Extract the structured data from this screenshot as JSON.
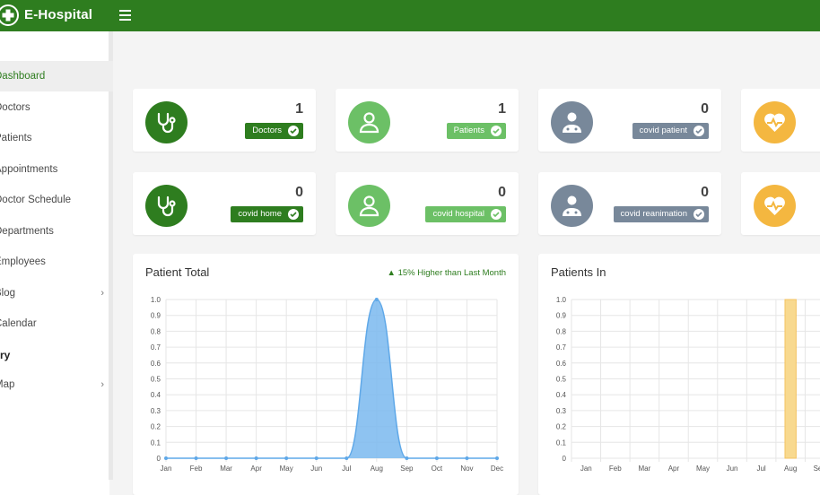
{
  "header": {
    "brand": "E-Hospital"
  },
  "sidebar": {
    "items": [
      {
        "label": "Dashboard",
        "active": true
      },
      {
        "label": "Doctors"
      },
      {
        "label": "Patients"
      },
      {
        "label": "Appointments"
      },
      {
        "label": "Doctor Schedule"
      },
      {
        "label": "Departments"
      },
      {
        "label": "Employees"
      },
      {
        "label": "Blog",
        "has_children": true
      },
      {
        "label": "Calendar"
      }
    ],
    "section_label": "ry",
    "map_item": {
      "label": "Map",
      "has_children": true
    }
  },
  "stats": [
    {
      "value": "1",
      "label": "Doctors",
      "icon": "stethoscope-icon",
      "color": "#2e7d1f"
    },
    {
      "value": "1",
      "label": "Patients",
      "icon": "user-icon",
      "color": "#6cc066"
    },
    {
      "value": "0",
      "label": "covid patient",
      "icon": "doctor-icon",
      "color": "#78889a"
    },
    {
      "value": "",
      "label": "",
      "icon": "heartbeat-icon",
      "color": "#f4b740"
    },
    {
      "value": "0",
      "label": "covid home",
      "icon": "stethoscope-icon",
      "color": "#2e7d1f"
    },
    {
      "value": "0",
      "label": "covid hospital",
      "icon": "user-icon",
      "color": "#6cc066"
    },
    {
      "value": "0",
      "label": "covid reanimation",
      "icon": "doctor-icon",
      "color": "#78889a"
    },
    {
      "value": "",
      "label": "",
      "icon": "heartbeat-icon",
      "color": "#f4b740"
    }
  ],
  "charts": {
    "patient_total": {
      "title": "Patient Total",
      "note": "15% Higher than Last Month"
    },
    "patients_in": {
      "title": "Patients In"
    }
  },
  "chart_data": [
    {
      "type": "area",
      "title": "Patient Total",
      "categories": [
        "Jan",
        "Feb",
        "Mar",
        "Apr",
        "May",
        "Jun",
        "Jul",
        "Aug",
        "Sep",
        "Oct",
        "Nov",
        "Dec"
      ],
      "values": [
        0,
        0,
        0,
        0,
        0,
        0,
        0,
        1,
        0,
        0,
        0,
        0
      ],
      "ylim": [
        0,
        1.0
      ],
      "yticks": [
        "0",
        "0.1",
        "0.2",
        "0.3",
        "0.4",
        "0.5",
        "0.6",
        "0.7",
        "0.8",
        "0.9",
        "1.0"
      ],
      "color": "#7ab8ef"
    },
    {
      "type": "bar",
      "title": "Patients In",
      "categories": [
        "Jan",
        "Feb",
        "Mar",
        "Apr",
        "May",
        "Jun",
        "Jul",
        "Aug",
        "Sep"
      ],
      "values": [
        0,
        0,
        0,
        0,
        0,
        0,
        0,
        1,
        0
      ],
      "ylim": [
        0,
        1.0
      ],
      "yticks": [
        "0",
        "0.1",
        "0.2",
        "0.3",
        "0.4",
        "0.5",
        "0.6",
        "0.7",
        "0.8",
        "0.9",
        "1.0"
      ],
      "color": "#f8d98f"
    }
  ]
}
